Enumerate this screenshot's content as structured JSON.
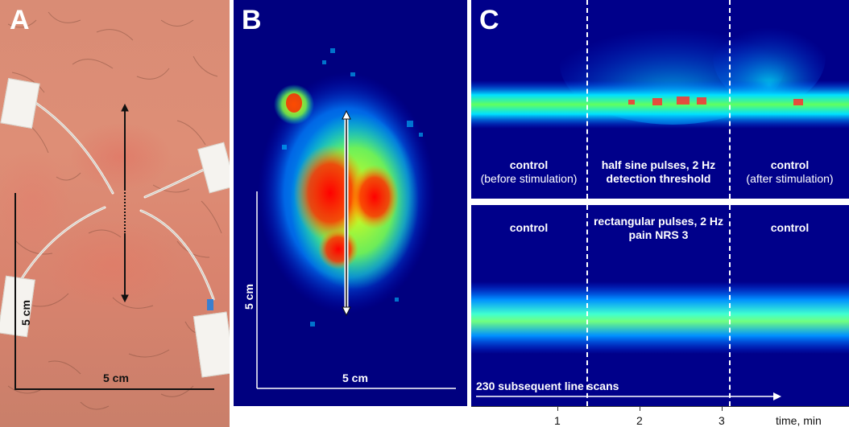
{
  "panels": {
    "a": {
      "letter": "A",
      "scale_h_label": "5 cm",
      "scale_v_label": "5 cm"
    },
    "b": {
      "letter": "B",
      "scale_h_label": "5 cm",
      "scale_v_label": "5 cm"
    },
    "c": {
      "letter": "C",
      "top": {
        "segments": [
          {
            "line1": "control",
            "line2": "(before stimulation)"
          },
          {
            "line1": "half sine pulses, 2 Hz",
            "line2": "detection threshold"
          },
          {
            "line1": "control",
            "line2": "(after stimulation)"
          }
        ]
      },
      "bottom": {
        "segments": [
          {
            "line1": "control",
            "line2": ""
          },
          {
            "line1": "rectangular pulses, 2 Hz",
            "line2": "pain NRS 3"
          },
          {
            "line1": "control",
            "line2": ""
          }
        ],
        "arrow_label": "230 subsequent line scans"
      },
      "axis": {
        "ticks": [
          "1",
          "2",
          "3"
        ],
        "label": "time, min"
      }
    }
  },
  "colors": {
    "low": "#00007f",
    "mid": "#00ffff",
    "high": "#ffff00",
    "peak": "#ff0000"
  }
}
